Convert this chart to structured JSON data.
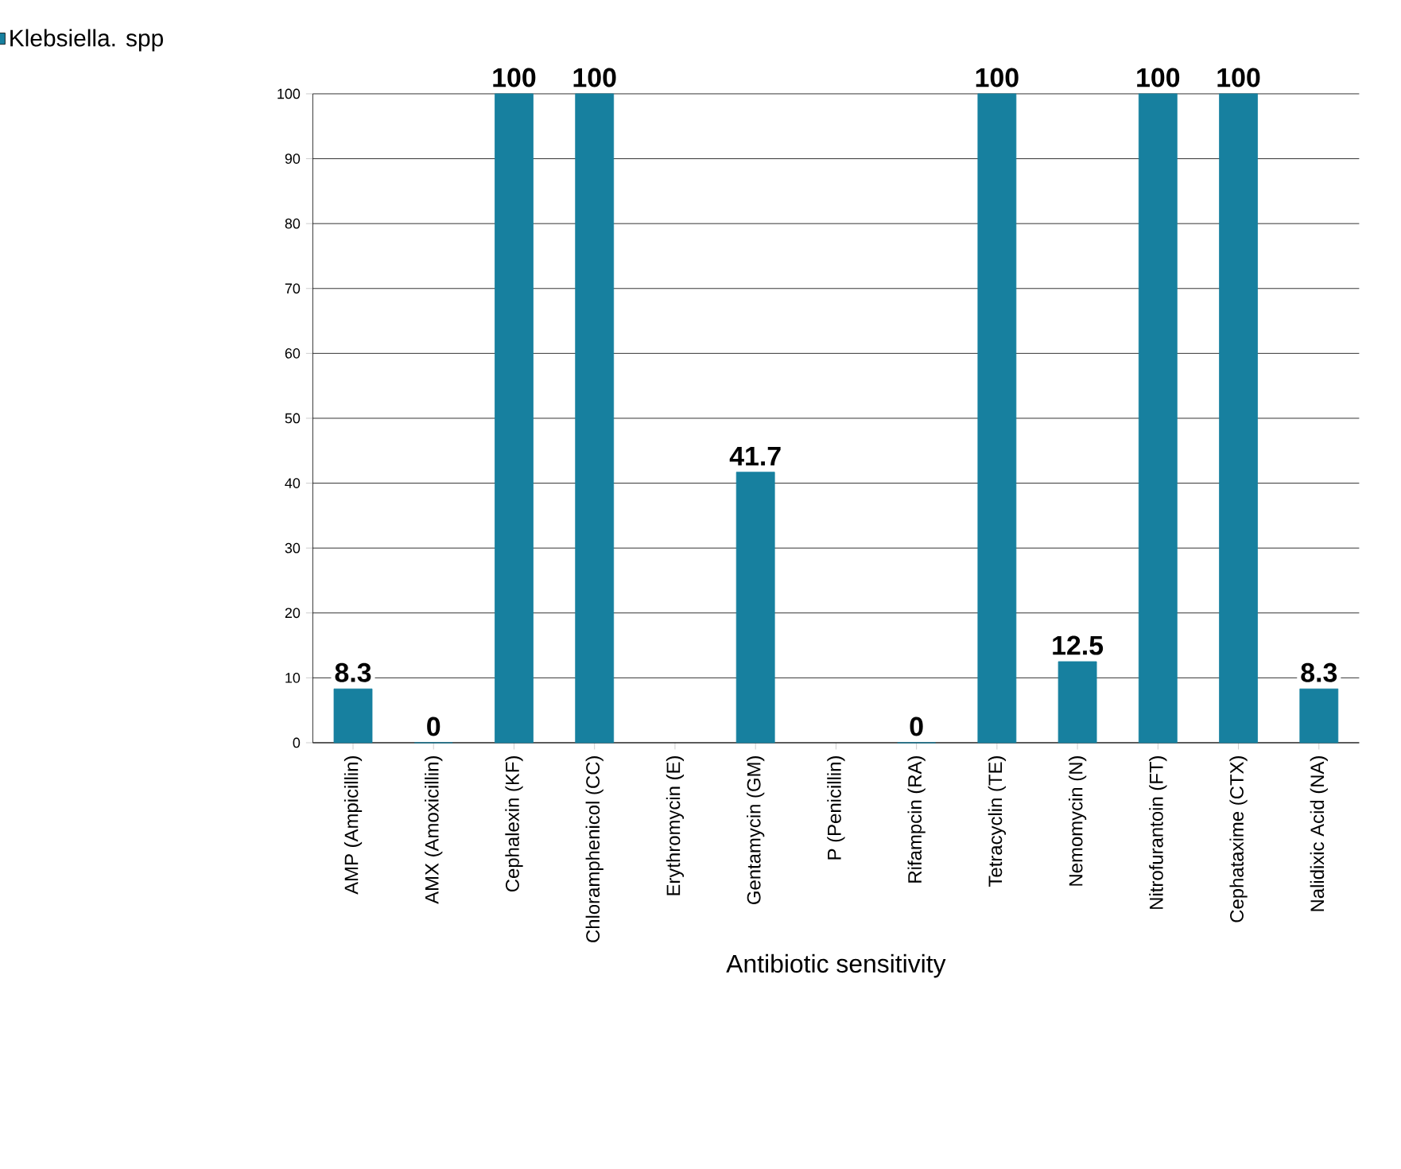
{
  "chart_data": {
    "type": "bar",
    "xlabel": "Antibiotic sensitivity",
    "categories": [
      "AMP (Ampicillin)",
      "AMX (Amoxicillin)",
      "Cephalexin (KF)",
      "Chloramphenicol (CC)",
      "Erythromycin (E)",
      "Gentamycin (GM)",
      "P (Penicillin)",
      "Rifampcin (RA)",
      "Tetracyclin (TE)",
      "Nemomycin (N)",
      "Nitrofurantoin (FT)",
      "Cephataxime (CTX)",
      "Nalidixic Acid (NA)"
    ],
    "series": [
      {
        "name": "Klebsiella. spp",
        "color": "#17809f",
        "values": [
          8.3,
          0,
          100,
          100,
          null,
          41.7,
          null,
          0,
          100,
          12.5,
          100,
          100,
          8.3
        ]
      }
    ],
    "ylim": [
      0,
      100
    ],
    "yticks": [
      0,
      10,
      20,
      30,
      40,
      50,
      60,
      70,
      80,
      90,
      100
    ],
    "grid": "y",
    "legend": "top left",
    "data_labels": true
  }
}
